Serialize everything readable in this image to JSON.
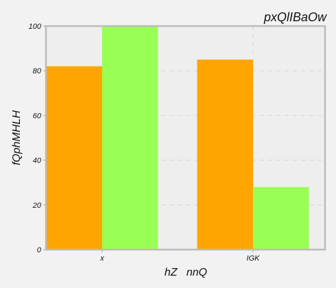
{
  "chart_data": {
    "type": "bar",
    "title": "pxQlIBaOw",
    "xlabel": "hZ   nnQ",
    "ylabel": "fQphMHLH",
    "categories": [
      "x",
      "IGK"
    ],
    "series": [
      {
        "values": [
          82,
          85
        ],
        "color": "#ffa500"
      },
      {
        "values": [
          100,
          28
        ],
        "color": "#99ff55"
      }
    ],
    "ylim": [
      0,
      100
    ],
    "yticks": [
      0,
      20,
      40,
      60,
      80,
      100
    ],
    "grid": true,
    "legend": "none"
  },
  "colors": {
    "background": "#f2f2f2",
    "plot_background": "#eeeeee",
    "axis_frame": "#bbbbbb",
    "grid": "#dddddd"
  }
}
